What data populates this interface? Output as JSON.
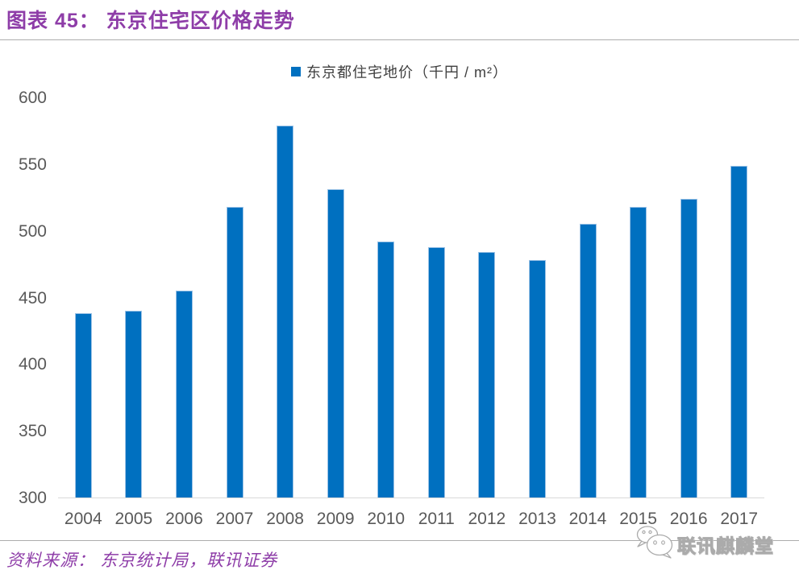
{
  "header": {
    "title": "图表 45： 东京住宅区价格走势"
  },
  "chart_data": {
    "type": "bar",
    "title": "",
    "legend": "东京都住宅地价（千円 / m²）",
    "legend_position": "top-center",
    "categories": [
      "2004",
      "2005",
      "2006",
      "2007",
      "2008",
      "2009",
      "2010",
      "2011",
      "2012",
      "2013",
      "2014",
      "2015",
      "2016",
      "2017"
    ],
    "values": [
      438,
      440,
      455,
      518,
      579,
      531,
      492,
      488,
      484,
      478,
      505,
      518,
      524,
      549
    ],
    "xlabel": "",
    "ylabel": "",
    "ylim": [
      300,
      600
    ],
    "yticks": [
      300,
      350,
      400,
      450,
      500,
      550,
      600
    ],
    "grid": false,
    "bar_color": "#0070C0",
    "bar_border_color": "#9DC3E6"
  },
  "footer": {
    "source": "资料来源： 东京统计局，联讯证券",
    "watermark": "联讯麒麟堂"
  },
  "colors": {
    "accent_purple": "#8E3DA8",
    "axis_text": "#595959",
    "baseline_gray": "#D9D9D9",
    "divider_gray": "#ADADAD",
    "watermark_gray": "#ABABAB"
  },
  "icons": {
    "legend_swatch": "blue-square",
    "watermark_logo": "wechat-icon"
  }
}
